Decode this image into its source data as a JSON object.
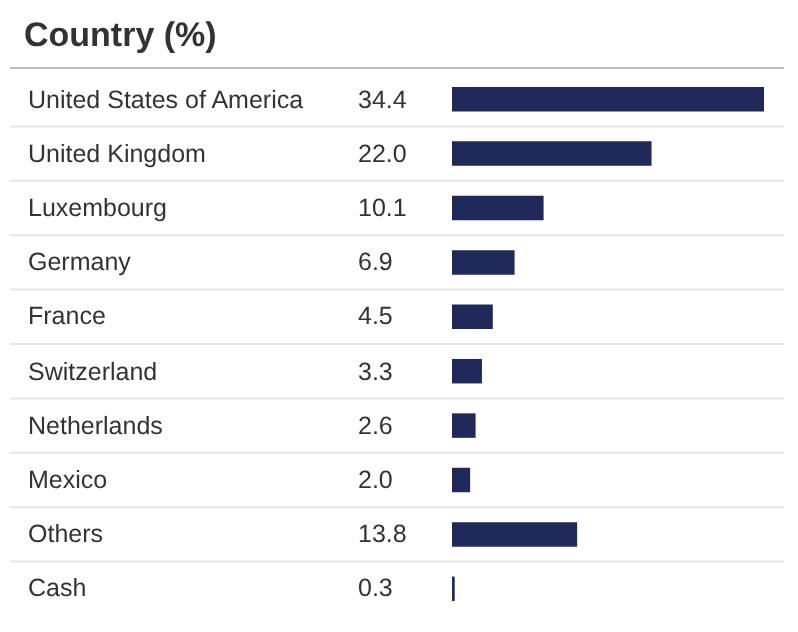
{
  "chart_data": {
    "type": "bar",
    "orientation": "horizontal",
    "title": "Country (%)",
    "categories": [
      "United States of America",
      "United Kingdom",
      "Luxembourg",
      "Germany",
      "France",
      "Switzerland",
      "Netherlands",
      "Mexico",
      "Others",
      "Cash"
    ],
    "values": [
      34.4,
      22.0,
      10.1,
      6.9,
      4.5,
      3.3,
      2.6,
      2.0,
      13.8,
      0.3
    ],
    "value_labels": [
      "34.4",
      "22.0",
      "10.1",
      "6.9",
      "4.5",
      "3.3",
      "2.6",
      "2.0",
      "13.8",
      "0.3"
    ],
    "color": "#1f2a5a"
  }
}
